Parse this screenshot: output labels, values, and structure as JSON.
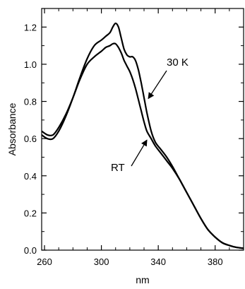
{
  "chart_data": {
    "type": "line",
    "title": "",
    "xlabel": "nm",
    "ylabel": "Absorbance",
    "xlim": [
      258,
      400
    ],
    "ylim": [
      0,
      1.3
    ],
    "xticks": [
      260,
      300,
      340,
      380
    ],
    "yticks": [
      0.0,
      0.2,
      0.4,
      0.6,
      0.8,
      1.0,
      1.2
    ],
    "ytick_labels": [
      "0.0",
      "0.2",
      "0.4",
      "0.6",
      "0.8",
      "1.0",
      "1.2"
    ],
    "grid": false,
    "series": [
      {
        "name": "30 K",
        "x": [
          258,
          262,
          266,
          270,
          275,
          280,
          285,
          290,
          295,
          300,
          303,
          306,
          308,
          310,
          312,
          314,
          316,
          318,
          320,
          322,
          324,
          326,
          328,
          330,
          332,
          335,
          338,
          342,
          346,
          350,
          355,
          360,
          365,
          370,
          375,
          380,
          385,
          390,
          395,
          400
        ],
        "y": [
          0.62,
          0.6,
          0.6,
          0.64,
          0.72,
          0.82,
          0.93,
          1.03,
          1.1,
          1.13,
          1.15,
          1.17,
          1.2,
          1.22,
          1.2,
          1.14,
          1.08,
          1.05,
          1.04,
          1.04,
          1.02,
          0.97,
          0.9,
          0.82,
          0.74,
          0.64,
          0.58,
          0.54,
          0.5,
          0.45,
          0.38,
          0.31,
          0.24,
          0.17,
          0.11,
          0.07,
          0.04,
          0.025,
          0.015,
          0.01
        ]
      },
      {
        "name": "RT",
        "x": [
          258,
          262,
          266,
          270,
          275,
          280,
          285,
          290,
          295,
          300,
          303,
          306,
          308,
          310,
          312,
          314,
          316,
          318,
          320,
          322,
          324,
          326,
          328,
          330,
          332,
          335,
          338,
          342,
          346,
          350,
          355,
          360,
          365,
          370,
          375,
          380,
          385,
          390,
          395,
          400
        ],
        "y": [
          0.64,
          0.62,
          0.62,
          0.66,
          0.73,
          0.82,
          0.92,
          1.0,
          1.04,
          1.07,
          1.09,
          1.1,
          1.11,
          1.11,
          1.09,
          1.06,
          1.02,
          0.99,
          0.96,
          0.92,
          0.87,
          0.81,
          0.75,
          0.69,
          0.64,
          0.6,
          0.56,
          0.52,
          0.48,
          0.44,
          0.38,
          0.31,
          0.24,
          0.17,
          0.11,
          0.07,
          0.04,
          0.025,
          0.015,
          0.01
        ]
      }
    ],
    "annotations": [
      {
        "text": "30 K",
        "target_series": "30 K",
        "x": 331,
        "y": 0.8
      },
      {
        "text": "RT",
        "target_series": "RT",
        "x": 334,
        "y": 0.6
      }
    ]
  }
}
